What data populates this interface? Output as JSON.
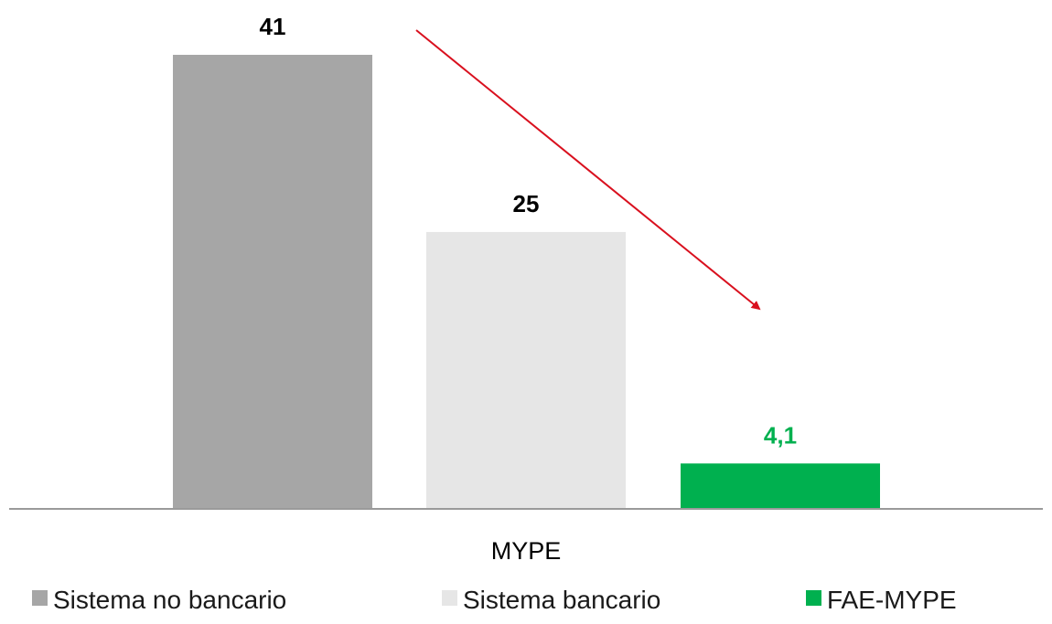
{
  "chart_data": {
    "type": "bar",
    "categories": [
      "MYPE"
    ],
    "series": [
      {
        "name": "Sistema no bancario",
        "values": [
          41
        ],
        "value_label": "41",
        "color": "#a6a6a6",
        "label_color": "#000000"
      },
      {
        "name": "Sistema bancario",
        "values": [
          25
        ],
        "value_label": "25",
        "color": "#e6e6e6",
        "label_color": "#000000"
      },
      {
        "name": "FAE-MYPE",
        "values": [
          4.1
        ],
        "value_label": "4,1",
        "color": "#00b04f",
        "label_color": "#00b04f"
      }
    ],
    "ylim": [
      0,
      41
    ],
    "grid": false,
    "legend_position": "bottom",
    "annotation": {
      "type": "arrow",
      "color": "#d9101e",
      "direction": "decreasing trend from Sistema no bancario to FAE-MYPE"
    }
  }
}
